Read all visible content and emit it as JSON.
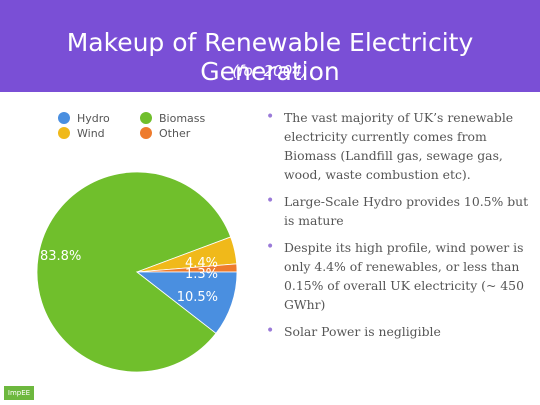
{
  "header": {
    "title": "Makeup of Renewable Electricity Generation",
    "subtitle": "(for 2004)",
    "color": "#7a4fd6"
  },
  "chart_data": {
    "type": "pie",
    "title": "",
    "slices": [
      {
        "label": "Biomass",
        "value": 83.8,
        "color": "#70bf2c",
        "display": "83.8%"
      },
      {
        "label": "Wind",
        "value": 4.4,
        "color": "#f0b91a",
        "display": "4.4%"
      },
      {
        "label": "Other",
        "value": 1.3,
        "color": "#ee7b2d",
        "display": "1.3%"
      },
      {
        "label": "Hydro",
        "value": 10.5,
        "color": "#4a8fe0",
        "display": "10.5%"
      }
    ],
    "legend": {
      "placement": "top-left",
      "entries": [
        {
          "label": "Hydro",
          "color": "#4a8fe0"
        },
        {
          "label": "Biomass",
          "color": "#70bf2c"
        },
        {
          "label": "Wind",
          "color": "#f0b91a"
        },
        {
          "label": "Other",
          "color": "#ee7b2d"
        }
      ]
    }
  },
  "bullets": [
    "The vast majority of UK’s renewable electricity currently comes from Biomass (Landfill gas, sewage gas, wood, waste combustion etc).",
    "Large-Scale Hydro provides 10.5% but is mature",
    "Despite its high profile, wind power is only 4.4% of renewables, or less than 0.15% of overall UK electricity (~ 450 GWhr)",
    "Solar Power is negligible"
  ],
  "logo": {
    "text": "ImpEE"
  }
}
